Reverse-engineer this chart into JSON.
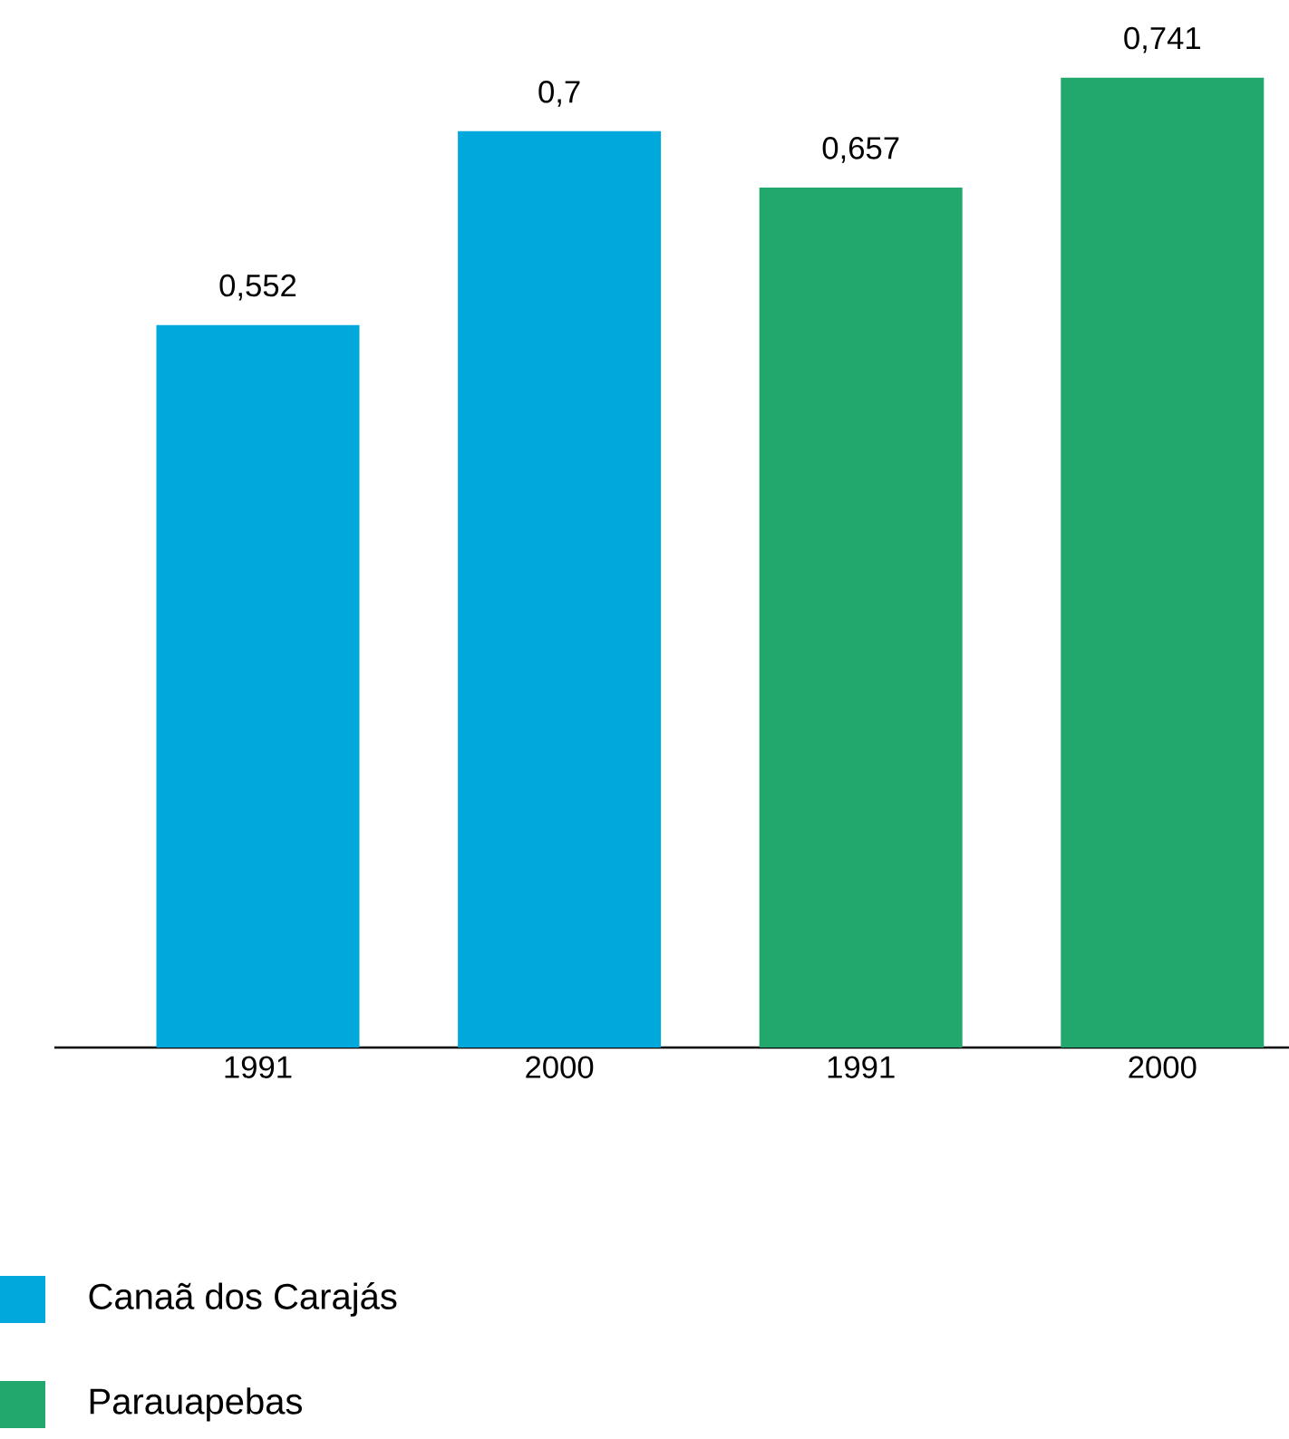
{
  "chart_data": {
    "type": "bar",
    "categories": [
      "1991",
      "2000",
      "1991",
      "2000"
    ],
    "series": [
      {
        "name": "Canaã dos Carajás",
        "color": "#00a8dc",
        "values": [
          0.552,
          0.7,
          null,
          null
        ],
        "value_labels": [
          "0,552",
          "0,7",
          null,
          null
        ]
      },
      {
        "name": "Parauapebas",
        "color": "#22a86d",
        "values": [
          null,
          null,
          0.657,
          0.741
        ],
        "value_labels": [
          null,
          null,
          "0,657",
          "0,741"
        ]
      }
    ],
    "legend": "bottom left"
  }
}
